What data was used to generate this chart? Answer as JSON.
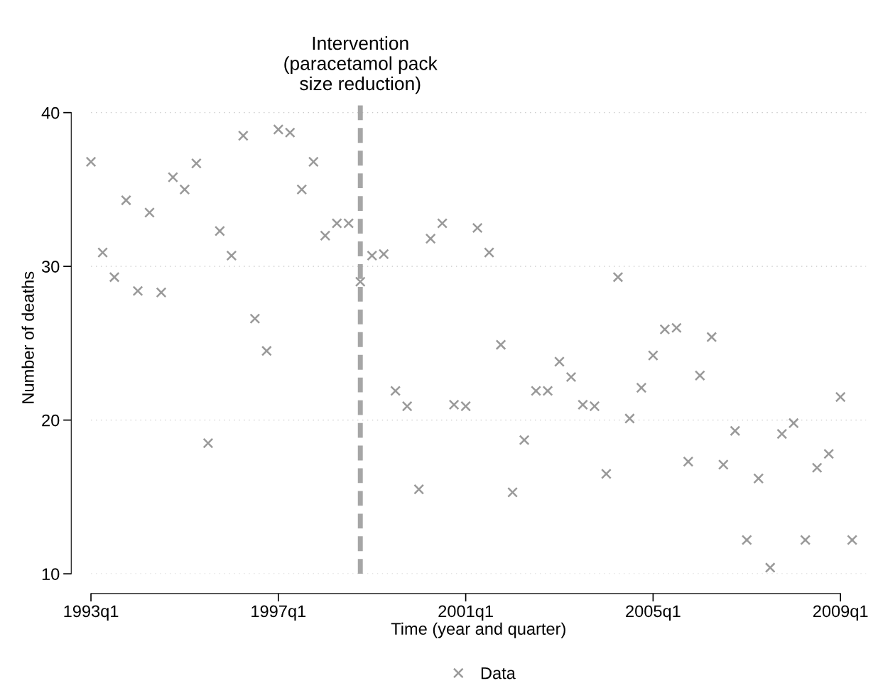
{
  "chart_data": {
    "type": "scatter",
    "xlabel": "Time (year and quarter)",
    "ylabel": "Number of deaths",
    "categories": [
      "1993q1",
      null,
      null,
      null,
      null,
      null,
      null,
      null,
      null,
      null,
      null,
      null,
      null,
      null,
      null,
      null,
      "1997q1",
      null,
      null,
      null,
      null,
      null,
      null,
      null,
      null,
      null,
      null,
      null,
      null,
      null,
      null,
      null,
      "2001q1",
      null,
      null,
      null,
      null,
      null,
      null,
      null,
      null,
      null,
      null,
      null,
      null,
      null,
      null,
      null,
      "2005q1",
      null,
      null,
      null,
      null,
      null,
      null,
      null,
      null,
      null,
      null,
      null,
      null,
      null,
      null,
      null,
      "2009q1",
      null
    ],
    "series": [
      {
        "name": "Data",
        "color": "#999999",
        "values": [
          36.8,
          30.9,
          29.3,
          34.3,
          28.4,
          33.5,
          28.3,
          35.8,
          35.0,
          36.7,
          18.5,
          32.3,
          30.7,
          38.5,
          26.6,
          24.5,
          38.9,
          38.7,
          35.0,
          36.8,
          32.0,
          32.8,
          32.8,
          29.0,
          30.7,
          30.8,
          21.9,
          20.9,
          15.5,
          31.8,
          32.8,
          21.0,
          20.9,
          32.5,
          30.9,
          24.9,
          15.3,
          18.7,
          21.9,
          21.9,
          23.8,
          22.8,
          21.0,
          20.9,
          16.5,
          29.3,
          20.1,
          22.1,
          24.2,
          25.9,
          26.0,
          17.3,
          22.9,
          25.4,
          17.1,
          19.3,
          12.2,
          16.2,
          10.4,
          19.1,
          19.8,
          12.2,
          16.9,
          17.8,
          21.5,
          12.2
        ]
      }
    ],
    "marker": "cross",
    "ylim": [
      10,
      40.7
    ],
    "yticks": [
      10,
      20,
      30,
      40
    ],
    "grid": "y",
    "legend": "bottom",
    "annotations": [
      "Intervention\n(paracetamol pack\nsize reduction)"
    ]
  }
}
